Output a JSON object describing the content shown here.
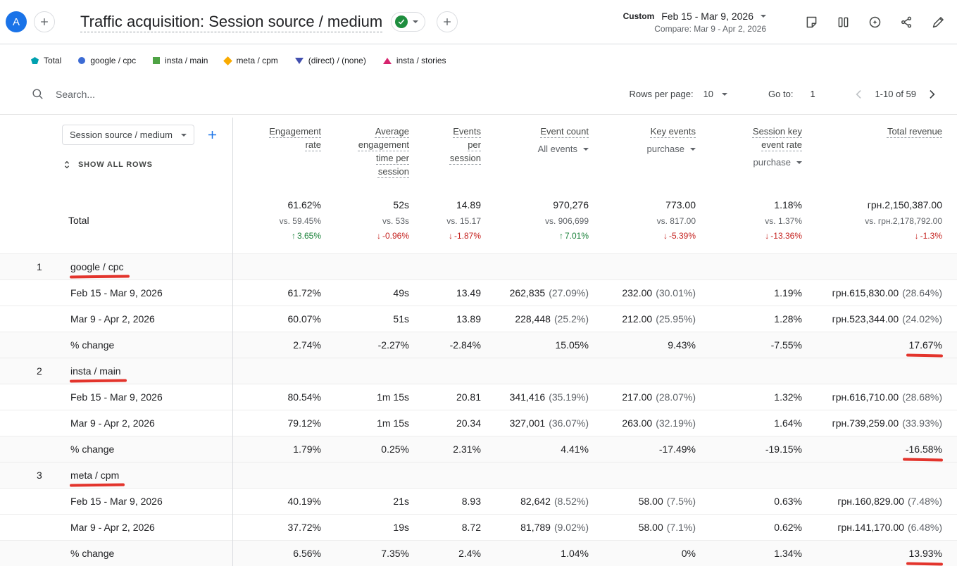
{
  "header": {
    "avatar_label": "A",
    "title": "Traffic acquisition: Session source / medium",
    "range_type": "Custom",
    "date_range": "Feb 15 - Mar 9, 2026",
    "compare_label": "Compare: Mar 9 - Apr 2, 2026"
  },
  "legend": [
    {
      "label": "Total",
      "shape": "pentagon",
      "color": "#00a0af"
    },
    {
      "label": "google / cpc",
      "shape": "circle",
      "color": "#3c6bd4"
    },
    {
      "label": "insta / main",
      "shape": "square",
      "color": "#4fa345"
    },
    {
      "label": "meta / cpm",
      "shape": "diamond",
      "color": "#f9ab00"
    },
    {
      "label": "(direct) / (none)",
      "shape": "triangle-down",
      "color": "#4350af"
    },
    {
      "label": "insta / stories",
      "shape": "triangle-up",
      "color": "#d6246e"
    }
  ],
  "toolbar": {
    "search_placeholder": "Search...",
    "rows_per_page_label": "Rows per page:",
    "rows_per_page_value": "10",
    "go_to_label": "Go to:",
    "go_to_value": "1",
    "pagination": "1-10 of 59"
  },
  "table": {
    "dimension": "Session source / medium",
    "show_all_rows": "SHOW ALL ROWS",
    "columns": [
      {
        "label": "Engagement rate"
      },
      {
        "label": "Average engagement time per session"
      },
      {
        "label": "Events per session"
      },
      {
        "label": "Event count",
        "selector": "All events"
      },
      {
        "label": "Key events",
        "selector": "purchase"
      },
      {
        "label": "Session key event rate",
        "selector": "purchase"
      },
      {
        "label": "Total revenue"
      }
    ],
    "total": {
      "label": "Total",
      "cells": [
        {
          "value": "61.62%",
          "vs": "vs. 59.45%",
          "delta": "3.65%",
          "trend": "up"
        },
        {
          "value": "52s",
          "vs": "vs. 53s",
          "delta": "-0.96%",
          "trend": "down"
        },
        {
          "value": "14.89",
          "vs": "vs. 15.17",
          "delta": "-1.87%",
          "trend": "down"
        },
        {
          "value": "970,276",
          "vs": "vs. 906,699",
          "delta": "7.01%",
          "trend": "up"
        },
        {
          "value": "773.00",
          "vs": "vs. 817.00",
          "delta": "-5.39%",
          "trend": "down"
        },
        {
          "value": "1.18%",
          "vs": "vs. 1.37%",
          "delta": "-13.36%",
          "trend": "down"
        },
        {
          "value": "грн.2,150,387.00",
          "vs": "vs. грн.2,178,792.00",
          "delta": "-1.3%",
          "trend": "down"
        }
      ]
    },
    "groups": [
      {
        "index": "1",
        "name": "google / cpc",
        "rows": [
          {
            "label": "Feb 15 - Mar 9, 2026",
            "cells": [
              {
                "v": "61.72%"
              },
              {
                "v": "49s"
              },
              {
                "v": "13.49"
              },
              {
                "v": "262,835",
                "s": "(27.09%)"
              },
              {
                "v": "232.00",
                "s": "(30.01%)"
              },
              {
                "v": "1.19%"
              },
              {
                "v": "грн.615,830.00",
                "s": "(28.64%)"
              }
            ]
          },
          {
            "label": "Mar 9 - Apr 2, 2026",
            "cells": [
              {
                "v": "60.07%"
              },
              {
                "v": "51s"
              },
              {
                "v": "13.89"
              },
              {
                "v": "228,448",
                "s": "(25.2%)"
              },
              {
                "v": "212.00",
                "s": "(25.95%)"
              },
              {
                "v": "1.28%"
              },
              {
                "v": "грн.523,344.00",
                "s": "(24.02%)"
              }
            ]
          },
          {
            "label": "% change",
            "change": true,
            "cells": [
              {
                "v": "2.74%"
              },
              {
                "v": "-2.27%"
              },
              {
                "v": "-2.84%"
              },
              {
                "v": "15.05%"
              },
              {
                "v": "9.43%"
              },
              {
                "v": "-7.55%"
              },
              {
                "v": "17.67%",
                "hl": true
              }
            ]
          }
        ]
      },
      {
        "index": "2",
        "name": "insta / main",
        "rows": [
          {
            "label": "Feb 15 - Mar 9, 2026",
            "cells": [
              {
                "v": "80.54%"
              },
              {
                "v": "1m 15s"
              },
              {
                "v": "20.81"
              },
              {
                "v": "341,416",
                "s": "(35.19%)"
              },
              {
                "v": "217.00",
                "s": "(28.07%)"
              },
              {
                "v": "1.32%"
              },
              {
                "v": "грн.616,710.00",
                "s": "(28.68%)"
              }
            ]
          },
          {
            "label": "Mar 9 - Apr 2, 2026",
            "cells": [
              {
                "v": "79.12%"
              },
              {
                "v": "1m 15s"
              },
              {
                "v": "20.34"
              },
              {
                "v": "327,001",
                "s": "(36.07%)"
              },
              {
                "v": "263.00",
                "s": "(32.19%)"
              },
              {
                "v": "1.64%"
              },
              {
                "v": "грн.739,259.00",
                "s": "(33.93%)"
              }
            ]
          },
          {
            "label": "% change",
            "change": true,
            "cells": [
              {
                "v": "1.79%"
              },
              {
                "v": "0.25%"
              },
              {
                "v": "2.31%"
              },
              {
                "v": "4.41%"
              },
              {
                "v": "-17.49%"
              },
              {
                "v": "-19.15%"
              },
              {
                "v": "-16.58%",
                "hl": true
              }
            ]
          }
        ]
      },
      {
        "index": "3",
        "name": "meta / cpm",
        "rows": [
          {
            "label": "Feb 15 - Mar 9, 2026",
            "cells": [
              {
                "v": "40.19%"
              },
              {
                "v": "21s"
              },
              {
                "v": "8.93"
              },
              {
                "v": "82,642",
                "s": "(8.52%)"
              },
              {
                "v": "58.00",
                "s": "(7.5%)"
              },
              {
                "v": "0.63%"
              },
              {
                "v": "грн.160,829.00",
                "s": "(7.48%)"
              }
            ]
          },
          {
            "label": "Mar 9 - Apr 2, 2026",
            "cells": [
              {
                "v": "37.72%"
              },
              {
                "v": "19s"
              },
              {
                "v": "8.72"
              },
              {
                "v": "81,789",
                "s": "(9.02%)"
              },
              {
                "v": "58.00",
                "s": "(7.1%)"
              },
              {
                "v": "0.62%"
              },
              {
                "v": "грн.141,170.00",
                "s": "(6.48%)"
              }
            ]
          },
          {
            "label": "% change",
            "change": true,
            "cells": [
              {
                "v": "6.56%"
              },
              {
                "v": "7.35%"
              },
              {
                "v": "2.4%"
              },
              {
                "v": "1.04%"
              },
              {
                "v": "0%"
              },
              {
                "v": "1.34%"
              },
              {
                "v": "13.93%",
                "hl": true
              }
            ]
          }
        ]
      }
    ]
  }
}
